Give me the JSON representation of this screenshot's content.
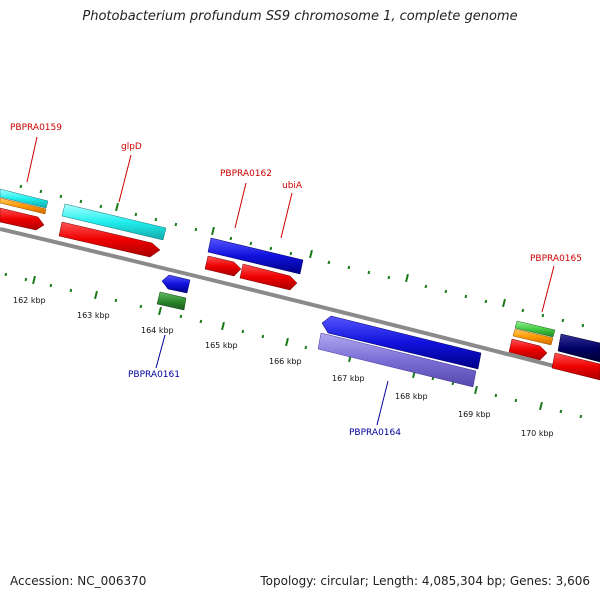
{
  "title": "Photobacterium profundum SS9 chromosome 1, complete genome",
  "footer": {
    "accession": "Accession: NC_006370",
    "summary": "Topology: circular; Length: 4,085,304 bp; Genes: 3,606"
  },
  "ticks": {
    "labels": [
      "162 kbp",
      "163 kbp",
      "164 kbp",
      "165 kbp",
      "166 kbp",
      "167 kbp",
      "168 kbp",
      "169 kbp",
      "170 kbp"
    ]
  },
  "genes": {
    "forward_labels": [
      "PBPRA0159",
      "glpD",
      "PBPRA0162",
      "ubiA",
      "PBPRA0165"
    ],
    "reverse_labels": [
      "PBPRA0161",
      "PBPRA0164"
    ]
  },
  "colors": {
    "backbone": "#808080",
    "tick": "#1a7a1a",
    "red": "#ee1111",
    "cyan": "#22eeee",
    "orange": "#ff9900",
    "green_light": "#44cc44",
    "green_dark": "#2e8b2e",
    "blue": "#1111dd",
    "navy": "#000066",
    "purple": "#7b6fd6"
  }
}
